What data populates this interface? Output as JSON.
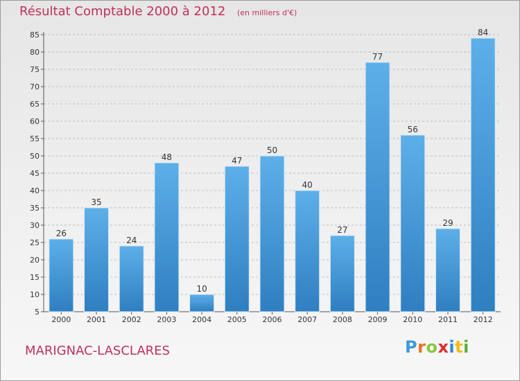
{
  "title": "Résultat Comptable 2000 à 2012",
  "subtitle": "(en milliers d'€)",
  "commune": "MARIGNAC-LASCLARES",
  "logo": {
    "letters": [
      "P",
      "r",
      "o",
      "x",
      "i",
      "t",
      "i"
    ],
    "colors": [
      "#3a9ad9",
      "#e8731c",
      "#8cc63f",
      "#e02b2b",
      "#2b8bd6",
      "#f2b90f",
      "#5cae3c"
    ]
  },
  "colors": {
    "title": "#c0305a",
    "bar_light": "#5dafe8",
    "bar_dark": "#2f7fc1",
    "grid": "#bdbdbd"
  },
  "chart_data": {
    "type": "bar",
    "title": "Résultat Comptable 2000 à 2012",
    "subtitle": "(en milliers d'€)",
    "categories": [
      "2000",
      "2001",
      "2002",
      "2003",
      "2004",
      "2005",
      "2006",
      "2007",
      "2008",
      "2009",
      "2010",
      "2011",
      "2012"
    ],
    "values": [
      26,
      35,
      24,
      48,
      10,
      47,
      50,
      40,
      27,
      77,
      56,
      29,
      84
    ],
    "labels": [
      "26",
      "35",
      "24",
      "48",
      "10",
      "47",
      "50",
      "40",
      "27",
      "77",
      "56",
      "29",
      "84"
    ],
    "ylim": [
      5,
      85
    ],
    "yticks": [
      "5",
      "10",
      "15",
      "20",
      "25",
      "30",
      "35",
      "40",
      "45",
      "50",
      "55",
      "60",
      "65",
      "70",
      "75",
      "80",
      "85"
    ],
    "ytick_values": [
      5,
      10,
      15,
      20,
      25,
      30,
      35,
      40,
      45,
      50,
      55,
      60,
      65,
      70,
      75,
      80,
      85
    ],
    "grid": true,
    "grid_style": "dashed horizontal"
  }
}
